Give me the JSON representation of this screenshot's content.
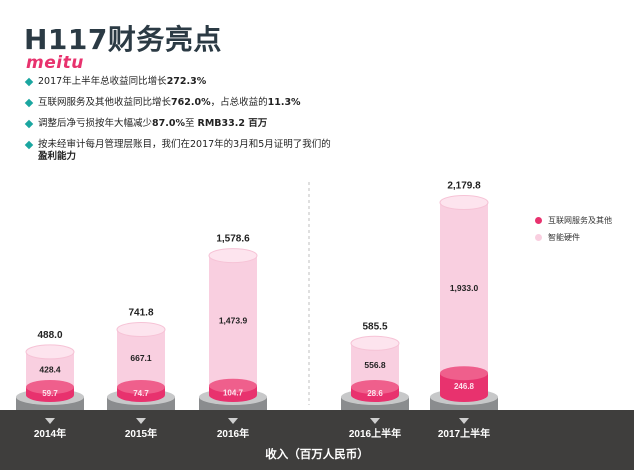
{
  "header": {
    "title": "H117财务亮点",
    "logo_text": "meitu"
  },
  "bullets": [
    {
      "text": "2017年上半年总收益同比增长",
      "bold": "272.3%",
      "tail": ""
    },
    {
      "text": "互联网服务及其他收益同比增长",
      "bold": "762.0%",
      "tail": "，占总收益的",
      "bold2": "11.3%"
    },
    {
      "text": "调整后净亏损按年大幅减少",
      "bold": "87.0%",
      "tail": "至 ",
      "bold2": "RMB33.2 百万"
    },
    {
      "text": "按未经审计每月管理层账目，我们在2017年的3月和5月证明了我们的",
      "bold": "盈利能力",
      "tail": ""
    }
  ],
  "colors": {
    "internet": "#e8326e",
    "hardware": "#f9cfe0",
    "accent": "#1aa6a0",
    "footer": "#3f3e3d"
  },
  "chart_data": {
    "type": "bar",
    "stacked": true,
    "categories": [
      "2014年",
      "2015年",
      "2016年",
      "2016上半年",
      "2017上半年"
    ],
    "series": [
      {
        "name": "互联网服务及其他",
        "values": [
          59.7,
          74.7,
          104.7,
          28.6,
          246.8
        ]
      },
      {
        "name": "智能硬件",
        "values": [
          428.4,
          667.1,
          1473.9,
          556.8,
          1933.0
        ]
      }
    ],
    "totals": [
      488.0,
      741.8,
      1578.6,
      585.5,
      2179.8
    ],
    "total_labels": [
      "488.0",
      "741.8",
      "1,578.6",
      "585.5",
      "2,179.8"
    ],
    "internet_labels": [
      "59.7",
      "74.7",
      "104.7",
      "28.6",
      "246.8"
    ],
    "hardware_labels": [
      "428.4",
      "667.1",
      "1,473.9",
      "556.8",
      "1,933.0"
    ],
    "xlabel": "收入（百万人民币）",
    "legend_position": "right"
  }
}
